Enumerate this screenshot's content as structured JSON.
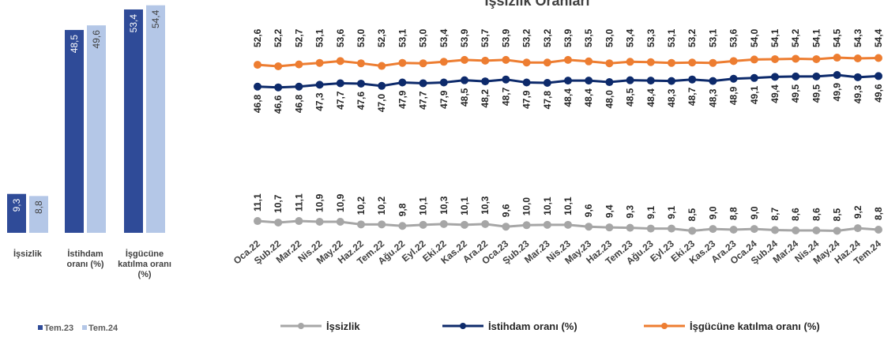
{
  "chart_data": [
    {
      "type": "bar",
      "categories": [
        "İşsizlik",
        "İstihdam oranı (%)",
        "İşgücüne katılma oranı (%)"
      ],
      "series": [
        {
          "name": "Tem.23",
          "color": "#2f4b98",
          "values": [
            9.3,
            48.5,
            53.4
          ],
          "value_labels": [
            "9,3",
            "48,5",
            "53,4"
          ]
        },
        {
          "name": "Tem.24",
          "color": "#b4c7e7",
          "values": [
            8.8,
            49.6,
            54.4
          ],
          "value_labels": [
            "8,8",
            "49,6",
            "54,4"
          ]
        }
      ]
    },
    {
      "type": "line",
      "title": "İşsizlik Oranları",
      "categories": [
        "Oca.22",
        "Şub.22",
        "Mar.22",
        "Nis.22",
        "May.22",
        "Haz.22",
        "Tem.22",
        "Ağu.22",
        "Eyl.22",
        "Eki.22",
        "Kas.22",
        "Ara.22",
        "Oca.23",
        "Şub.23",
        "Mar.23",
        "Nis.23",
        "May.23",
        "Haz.23",
        "Tem.23",
        "Ağu.23",
        "Eyl.23",
        "Eki.23",
        "Kas.23",
        "Ara.23",
        "Oca.24",
        "Şub.24",
        "Mar.24",
        "Nis.24",
        "May.24",
        "Haz.24",
        "Tem.24"
      ],
      "series": [
        {
          "name": "İşsizlik",
          "color": "#a6a6a6",
          "values": [
            11.1,
            10.7,
            11.1,
            10.9,
            10.9,
            10.2,
            10.2,
            9.8,
            10.1,
            10.3,
            10.1,
            10.3,
            9.6,
            10.0,
            10.1,
            10.1,
            9.6,
            9.4,
            9.3,
            9.1,
            9.1,
            8.5,
            9.0,
            8.8,
            9.0,
            8.7,
            8.6,
            8.6,
            8.5,
            9.2,
            8.8
          ],
          "value_labels": [
            "11,1",
            "10,7",
            "11,1",
            "10,9",
            "10,9",
            "10,2",
            "10,2",
            "9,8",
            "10,1",
            "10,3",
            "10,1",
            "10,3",
            "9,6",
            "10,0",
            "10,1",
            "10,1",
            "9,6",
            "9,4",
            "9,3",
            "9,1",
            "9,1",
            "8,5",
            "9,0",
            "8,8",
            "9,0",
            "8,7",
            "8,6",
            "8,6",
            "8,5",
            "9,2",
            "8,8"
          ]
        },
        {
          "name": "İstihdam oranı (%)",
          "color": "#0d2a6b",
          "values": [
            46.8,
            46.6,
            46.8,
            47.3,
            47.7,
            47.6,
            47.0,
            47.9,
            47.7,
            47.9,
            48.5,
            48.2,
            48.7,
            47.9,
            47.8,
            48.4,
            48.4,
            48.0,
            48.5,
            48.4,
            48.3,
            48.7,
            48.3,
            48.9,
            49.1,
            49.4,
            49.5,
            49.5,
            49.9,
            49.3,
            49.6
          ],
          "value_labels": [
            "46,8",
            "46,6",
            "46,8",
            "47,3",
            "47,7",
            "47,6",
            "47,0",
            "47,9",
            "47,7",
            "47,9",
            "48,5",
            "48,2",
            "48,7",
            "47,9",
            "47,8",
            "48,4",
            "48,4",
            "48,0",
            "48,5",
            "48,4",
            "48,3",
            "48,7",
            "48,3",
            "48,9",
            "49,1",
            "49,4",
            "49,5",
            "49,5",
            "49,9",
            "49,3",
            "49,6"
          ]
        },
        {
          "name": "İşgücüne katılma oranı (%)",
          "color": "#ed7d31",
          "values": [
            52.6,
            52.2,
            52.7,
            53.1,
            53.6,
            53.0,
            52.3,
            53.1,
            53.0,
            53.4,
            53.9,
            53.7,
            53.9,
            53.2,
            53.2,
            53.9,
            53.5,
            53.0,
            53.4,
            53.3,
            53.1,
            53.2,
            53.1,
            53.6,
            54.0,
            54.1,
            54.2,
            54.1,
            54.5,
            54.3,
            54.4
          ],
          "value_labels": [
            "52,6",
            "52,2",
            "52,7",
            "53,1",
            "53,6",
            "53,0",
            "52,3",
            "53,1",
            "53,0",
            "53,4",
            "53,9",
            "53,7",
            "53,9",
            "53,2",
            "53,2",
            "53,9",
            "53,5",
            "53,0",
            "53,4",
            "53,3",
            "53,1",
            "53,2",
            "53,1",
            "53,6",
            "54,0",
            "54,1",
            "54,2",
            "54,1",
            "54,5",
            "54,3",
            "54,4"
          ]
        }
      ]
    }
  ]
}
